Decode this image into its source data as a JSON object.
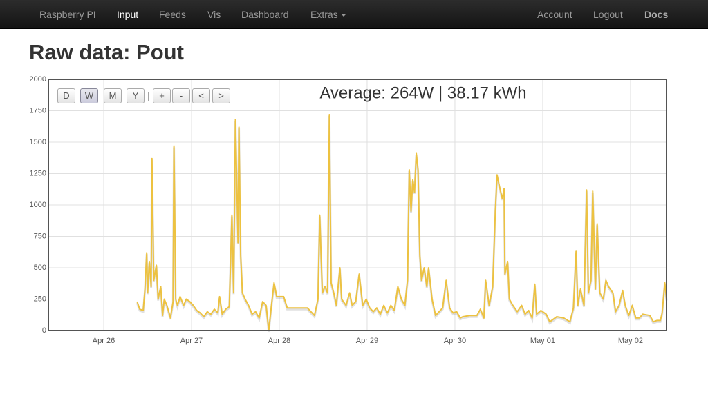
{
  "nav": {
    "brand": "Raspberry PI",
    "left": [
      "Input",
      "Feeds",
      "Vis",
      "Dashboard",
      "Extras"
    ],
    "right": [
      "Account",
      "Logout",
      "Docs"
    ]
  },
  "header": {
    "title": "Raw data: Pout"
  },
  "controls": {
    "buttons": [
      "D",
      "W",
      "M",
      "Y",
      "+",
      "-",
      "<",
      ">"
    ],
    "separator": "|"
  },
  "chart_data": {
    "type": "line",
    "annotation": "Average: 264W | 38.17 kWh",
    "color": "#edc240",
    "grid": true,
    "xlim": [
      25.37,
      32.41
    ],
    "xticks": [
      {
        "value": 26,
        "label": "Apr 26"
      },
      {
        "value": 27,
        "label": "Apr 27"
      },
      {
        "value": 28,
        "label": "Apr 28"
      },
      {
        "value": 29,
        "label": "Apr 29"
      },
      {
        "value": 30,
        "label": "Apr 30"
      },
      {
        "value": 31,
        "label": "May 01"
      },
      {
        "value": 32,
        "label": "May 02"
      }
    ],
    "ylim": [
      0,
      2000
    ],
    "yticks": [
      0,
      250,
      500,
      750,
      1000,
      1250,
      1500,
      1750,
      2000
    ],
    "x": [
      26.38,
      26.41,
      26.45,
      26.47,
      26.49,
      26.5,
      26.52,
      26.54,
      26.55,
      26.57,
      26.6,
      26.62,
      26.65,
      26.67,
      26.69,
      26.72,
      26.74,
      26.76,
      26.79,
      26.8,
      26.82,
      26.84,
      26.87,
      26.91,
      26.94,
      26.98,
      27.02,
      27.06,
      27.1,
      27.14,
      27.18,
      27.22,
      27.26,
      27.3,
      27.32,
      27.35,
      27.39,
      27.43,
      27.46,
      27.48,
      27.5,
      27.53,
      27.54,
      27.56,
      27.58,
      27.61,
      27.65,
      27.69,
      27.73,
      27.77,
      27.81,
      27.85,
      27.88,
      27.91,
      27.94,
      27.97,
      28.05,
      28.09,
      28.17,
      28.24,
      28.32,
      28.4,
      28.44,
      28.46,
      28.49,
      28.52,
      28.55,
      28.57,
      28.59,
      28.62,
      28.65,
      28.69,
      28.71,
      28.76,
      28.8,
      28.83,
      28.87,
      28.91,
      28.95,
      28.99,
      29.03,
      29.07,
      29.11,
      29.15,
      29.19,
      29.23,
      29.27,
      29.31,
      29.35,
      29.39,
      29.43,
      29.46,
      29.48,
      29.5,
      29.52,
      29.54,
      29.56,
      29.58,
      29.6,
      29.62,
      29.65,
      29.68,
      29.7,
      29.74,
      29.78,
      29.82,
      29.86,
      29.9,
      29.94,
      29.98,
      30.02,
      30.06,
      30.09,
      30.17,
      30.25,
      30.29,
      30.33,
      30.35,
      30.39,
      30.43,
      30.46,
      30.48,
      30.5,
      30.54,
      30.56,
      30.57,
      30.6,
      30.62,
      30.66,
      30.71,
      30.76,
      30.8,
      30.84,
      30.88,
      30.91,
      30.93,
      30.98,
      31.04,
      31.08,
      31.16,
      31.24,
      31.31,
      31.35,
      31.38,
      31.4,
      31.43,
      31.47,
      31.5,
      31.52,
      31.55,
      31.57,
      31.6,
      31.62,
      31.65,
      31.69,
      31.72,
      31.75,
      31.8,
      31.83,
      31.87,
      31.91,
      31.94,
      31.98,
      32.02,
      32.06,
      32.1,
      32.14,
      32.22,
      32.26,
      32.3,
      32.34,
      32.36,
      32.39,
      32.41
    ],
    "values": [
      230,
      170,
      160,
      330,
      620,
      300,
      550,
      350,
      1370,
      400,
      520,
      250,
      350,
      120,
      250,
      200,
      150,
      100,
      230,
      1470,
      250,
      200,
      270,
      200,
      250,
      230,
      200,
      160,
      140,
      110,
      150,
      130,
      170,
      140,
      270,
      130,
      170,
      190,
      920,
      300,
      1680,
      700,
      1620,
      600,
      300,
      250,
      200,
      130,
      150,
      100,
      230,
      200,
      0,
      200,
      380,
      270,
      270,
      180,
      180,
      180,
      180,
      120,
      250,
      920,
      300,
      350,
      300,
      1720,
      380,
      300,
      200,
      500,
      250,
      200,
      300,
      200,
      230,
      450,
      200,
      250,
      180,
      150,
      180,
      130,
      200,
      140,
      200,
      160,
      350,
      250,
      200,
      400,
      1280,
      950,
      1200,
      1100,
      1410,
      1280,
      600,
      400,
      500,
      350,
      500,
      250,
      120,
      150,
      180,
      400,
      180,
      140,
      150,
      100,
      110,
      120,
      120,
      170,
      100,
      400,
      200,
      350,
      950,
      1240,
      1170,
      1050,
      1130,
      450,
      550,
      250,
      200,
      150,
      200,
      130,
      160,
      100,
      370,
      130,
      160,
      130,
      70,
      110,
      100,
      70,
      180,
      630,
      200,
      330,
      200,
      1120,
      300,
      400,
      1110,
      330,
      850,
      300,
      250,
      400,
      350,
      300,
      150,
      200,
      320,
      200,
      120,
      200,
      100,
      100,
      130,
      120,
      70,
      80,
      80,
      140,
      380,
      250
    ]
  }
}
